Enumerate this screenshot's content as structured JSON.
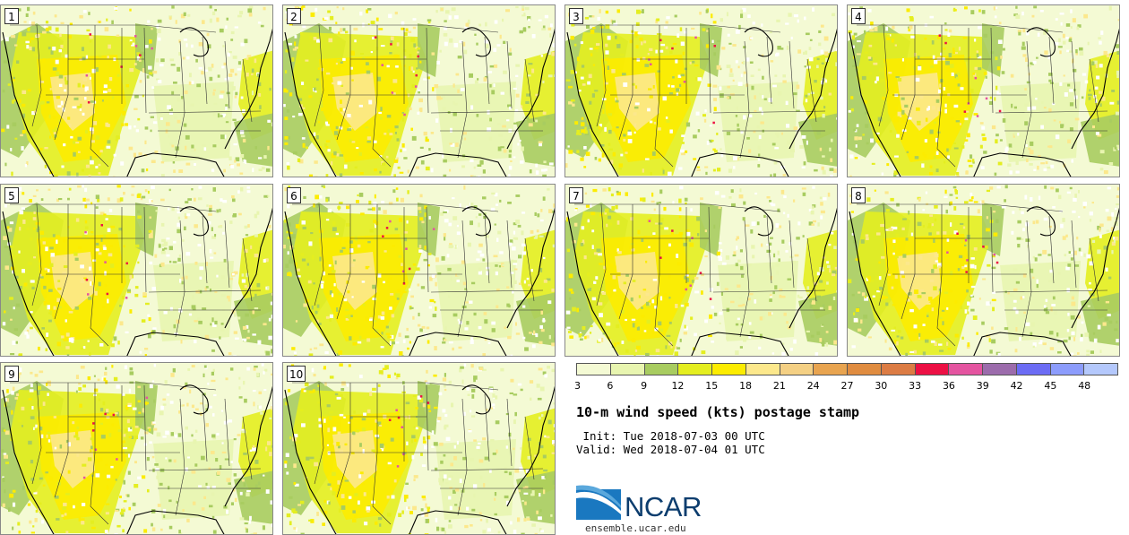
{
  "panels": [
    {
      "label": "1"
    },
    {
      "label": "2"
    },
    {
      "label": "3"
    },
    {
      "label": "4"
    },
    {
      "label": "5"
    },
    {
      "label": "6"
    },
    {
      "label": "7"
    },
    {
      "label": "8"
    },
    {
      "label": "9"
    },
    {
      "label": "10"
    }
  ],
  "colorbar": {
    "colors": [
      "#f4fad4",
      "#e8f5b0",
      "#a8cc60",
      "#e4ee20",
      "#fcec00",
      "#fce88c",
      "#f4d084",
      "#e8a450",
      "#e08c40",
      "#dc7c44",
      "#ec1044",
      "#e454a0",
      "#9c6cac",
      "#6c6cf4",
      "#8c9cfc",
      "#b4c8fc"
    ],
    "ticks": [
      "3",
      "6",
      "9",
      "12",
      "15",
      "18",
      "21",
      "24",
      "27",
      "30",
      "33",
      "36",
      "39",
      "42",
      "45",
      "48"
    ]
  },
  "title": "10-m wind speed (kts) postage stamp",
  "init_line": " Init: Tue 2018-07-03 00 UTC",
  "valid_line": "Valid: Wed 2018-07-04 01 UTC",
  "logo_text": "NCAR",
  "site": "ensemble.ucar.edu"
}
